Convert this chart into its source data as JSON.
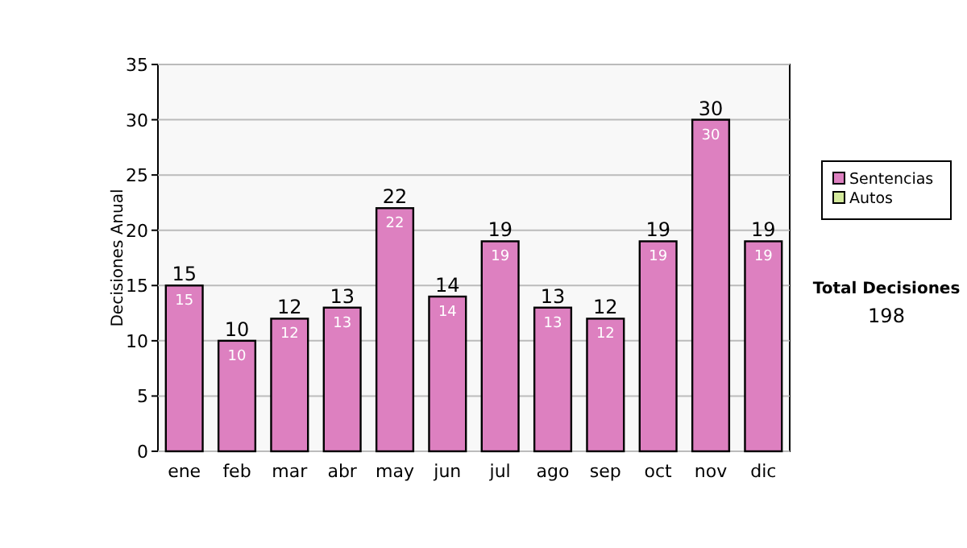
{
  "chart_data": {
    "type": "bar",
    "ylabel": "Decisiones Anual",
    "categories": [
      "ene",
      "feb",
      "mar",
      "abr",
      "may",
      "jun",
      "jul",
      "ago",
      "sep",
      "oct",
      "nov",
      "dic"
    ],
    "series": [
      {
        "name": "Sentencias",
        "color": "#dd80c0",
        "values": [
          15,
          10,
          12,
          13,
          22,
          14,
          19,
          13,
          12,
          19,
          30,
          19
        ],
        "value_labels": [
          "15",
          "10",
          "12",
          "13",
          "22",
          "14",
          "19",
          "13",
          "12",
          "19",
          "30",
          "19"
        ]
      },
      {
        "name": "Autos",
        "color": "#d4ea9c",
        "values": [
          0,
          0,
          0,
          0,
          0,
          0,
          0,
          0,
          0,
          0,
          0,
          0
        ]
      }
    ],
    "stacked": true,
    "totals": [
      "15",
      "10",
      "12",
      "13",
      "22",
      "14",
      "19",
      "13",
      "12",
      "19",
      "30",
      "19"
    ],
    "ylim": [
      0,
      35
    ],
    "yticks": [
      0,
      5,
      10,
      15,
      20,
      25,
      30,
      35
    ],
    "grid": "y",
    "legend": "right",
    "annotations": [
      "Total Decisiones",
      "198"
    ]
  }
}
